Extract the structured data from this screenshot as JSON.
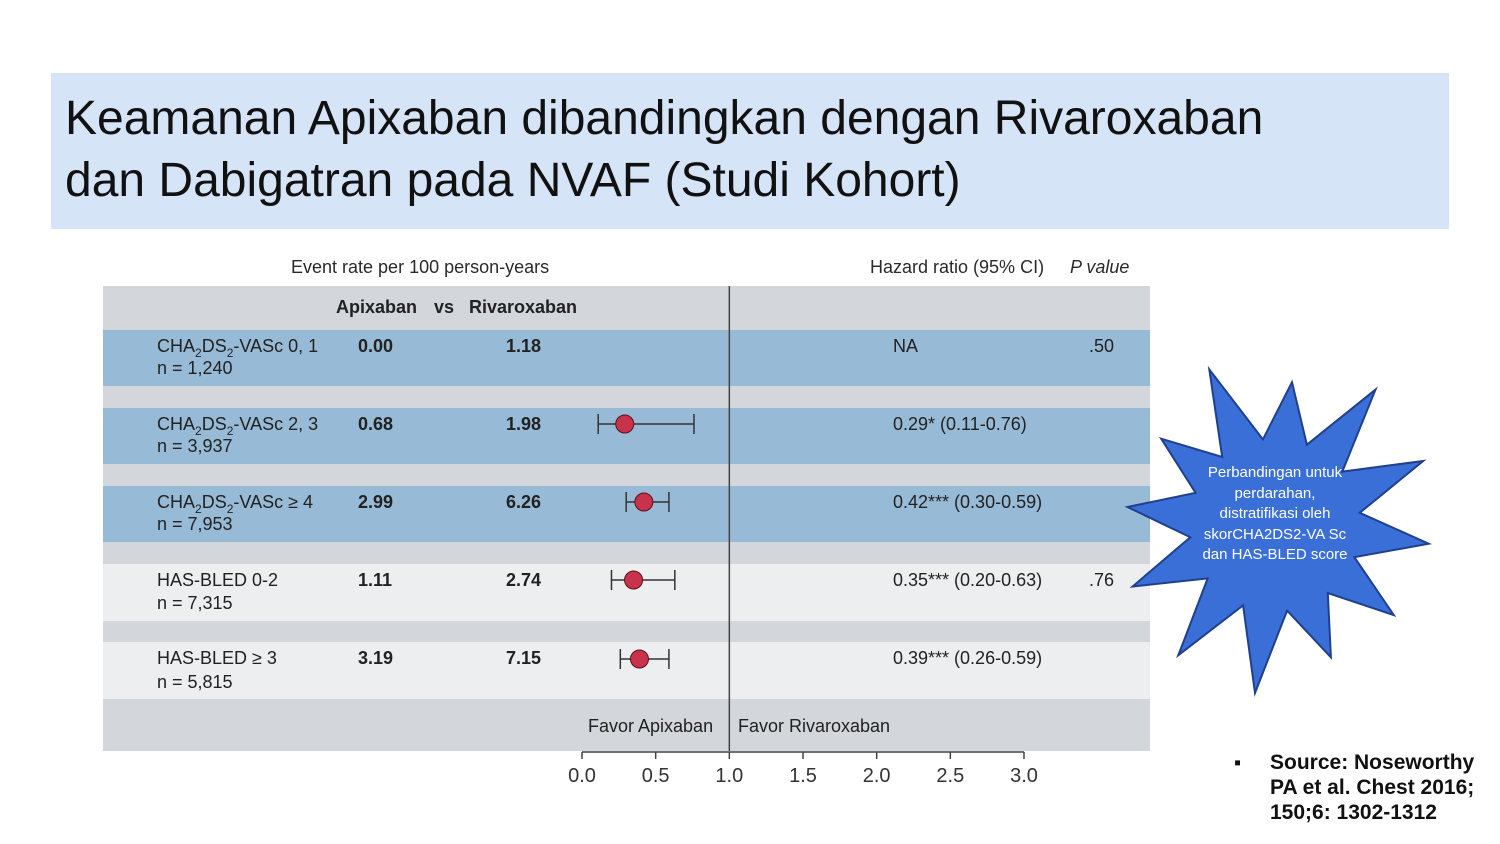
{
  "title": {
    "line1": "Keamanan Apixaban dibandingkan dengan Rivaroxaban",
    "line2": "dan Dabigatran pada NVAF (Studi Kohort)"
  },
  "headers": {
    "event_rate": "Event rate per 100 person-years",
    "hazard_ratio": "Hazard ratio (95% CI)",
    "p_value": "P value",
    "apixaban": "Apixaban",
    "vs": "vs",
    "rivaroxaban": "Rivaroxaban"
  },
  "rows": [
    {
      "label_pre": "CHA",
      "sub1": "2",
      "label_mid": "DS",
      "sub2": "2",
      "label_post": "-VASc 0, 1",
      "label": "",
      "n": "n = 1,240",
      "apix": "0.00",
      "riva": "1.18",
      "hr": "NA",
      "p": ".50"
    },
    {
      "label_pre": "CHA",
      "sub1": "2",
      "label_mid": "DS",
      "sub2": "2",
      "label_post": "-VASc 2, 3",
      "label": "",
      "n": "n = 3,937",
      "apix": "0.68",
      "riva": "1.98",
      "hr": "0.29* (0.11-0.76)",
      "p": ""
    },
    {
      "label_pre": "CHA",
      "sub1": "2",
      "label_mid": "DS",
      "sub2": "2",
      "label_post": "-VASc ≥ 4",
      "label": "",
      "n": "n = 7,953",
      "apix": "2.99",
      "riva": "6.26",
      "hr": "0.42*** (0.30-0.59)",
      "p": ""
    },
    {
      "label_pre": "",
      "sub1": "",
      "label_mid": "",
      "sub2": "",
      "label_post": "",
      "label": "HAS-BLED 0-2",
      "n": "n = 7,315",
      "apix": "1.11",
      "riva": "2.74",
      "hr": "0.35*** (0.20-0.63)",
      "p": ".76"
    },
    {
      "label_pre": "",
      "sub1": "",
      "label_mid": "",
      "sub2": "",
      "label_post": "",
      "label": "HAS-BLED ≥ 3",
      "n": "n = 5,815",
      "apix": "3.19",
      "riva": "7.15",
      "hr": "0.39*** (0.26-0.59)",
      "p": ""
    }
  ],
  "favor": {
    "left": "Favor Apixaban",
    "right": "Favor Rivaroxaban"
  },
  "callout": {
    "text": "Perbandingan untuk perdarahan, distratifikasi oleh skorCHA2DS2-VA Sc dan HAS-BLED score"
  },
  "source": {
    "bullet": "▪",
    "text": "Source: Noseworthy PA et al. Chest 2016; 150;6: 1302-1312"
  },
  "colors": {
    "title_bg": "#d6e4f7",
    "blue_band": "#97bbd6",
    "gray_band": "#d3d6da",
    "light_band": "#eceeef",
    "marker": "#c8324a",
    "star": "#3a6fd8"
  },
  "chart_data": {
    "type": "forest",
    "xlim": [
      0.0,
      3.0
    ],
    "xticks": [
      "0.0",
      "0.5",
      "1.0",
      "1.5",
      "2.0",
      "2.5",
      "3.0"
    ],
    "reference_line": 1.0,
    "series": [
      {
        "row": 0,
        "hr": null,
        "lo": null,
        "hi": null
      },
      {
        "row": 1,
        "hr": 0.29,
        "lo": 0.11,
        "hi": 0.76
      },
      {
        "row": 2,
        "hr": 0.42,
        "lo": 0.3,
        "hi": 0.59
      },
      {
        "row": 3,
        "hr": 0.35,
        "lo": 0.2,
        "hi": 0.63
      },
      {
        "row": 4,
        "hr": 0.39,
        "lo": 0.26,
        "hi": 0.59
      }
    ]
  }
}
